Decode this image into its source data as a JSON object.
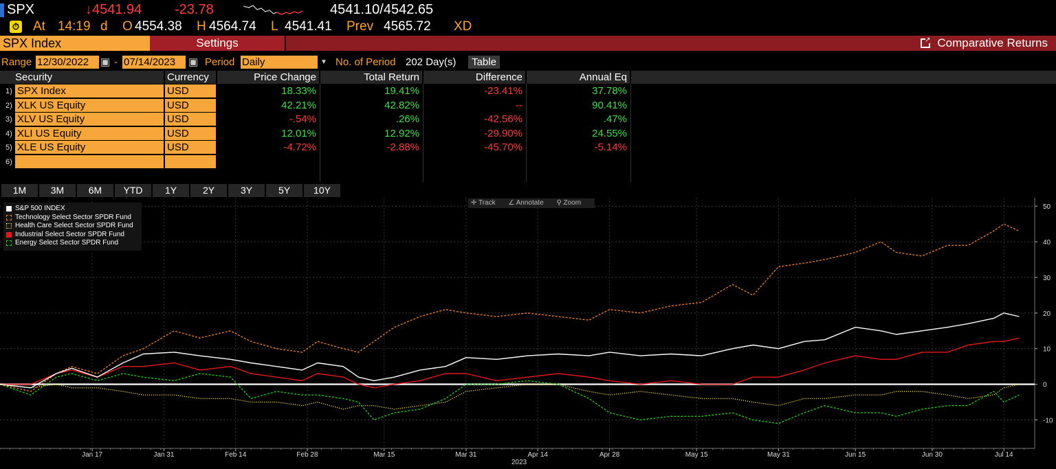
{
  "quote": {
    "ticker": "SPX",
    "last": "↓4541.94",
    "change": "-23.78",
    "bid_ask": "4541.10/4542.65",
    "at_label": "At",
    "time": "14:19",
    "time_flag": "d",
    "open_label": "O",
    "open": "4554.38",
    "high_label": "H",
    "high": "4564.74",
    "low_label": "L",
    "low": "4541.41",
    "prev_label": "Prev",
    "prev": "4565.72",
    "xd": "XD"
  },
  "menubar": {
    "security": "SPX Index",
    "settings": "Settings",
    "title": "Comparative Returns",
    "title_icon": "external-link-icon"
  },
  "controls": {
    "range_label": "Range",
    "start_date": "12/30/2022",
    "dash": "-",
    "end_date": "07/14/2023",
    "period_label": "Period",
    "period_value": "Daily",
    "num_period_label": "No. of Period",
    "num_period_value": "202 Day(s)",
    "table_button": "Table"
  },
  "table": {
    "headers": [
      "Security",
      "Currency",
      "Price Change",
      "Total Return",
      "Difference",
      "Annual Eq"
    ],
    "rows": [
      {
        "num": "1)",
        "security": "SPX Index",
        "currency": "USD",
        "price_change": "18.33%",
        "total_return": "19.41%",
        "difference": "-23.41%",
        "annual_eq": "37.78%"
      },
      {
        "num": "2)",
        "security": "XLK US Equity",
        "currency": "USD",
        "price_change": "42.21%",
        "total_return": "42.82%",
        "difference": "--",
        "annual_eq": "90.41%"
      },
      {
        "num": "3)",
        "security": "XLV US Equity",
        "currency": "USD",
        "price_change": "-.54%",
        "total_return": ".26%",
        "difference": "-42.56%",
        "annual_eq": ".47%"
      },
      {
        "num": "4)",
        "security": "XLI US Equity",
        "currency": "USD",
        "price_change": "12.01%",
        "total_return": "12.92%",
        "difference": "-29.90%",
        "annual_eq": "24.55%"
      },
      {
        "num": "5)",
        "security": "XLE US Equity",
        "currency": "USD",
        "price_change": "-4.72%",
        "total_return": "-2.88%",
        "difference": "-45.70%",
        "annual_eq": "-5.14%"
      },
      {
        "num": "6)",
        "security": "",
        "currency": "",
        "price_change": "",
        "total_return": "",
        "difference": "",
        "annual_eq": ""
      }
    ]
  },
  "range_buttons": [
    "1M",
    "3M",
    "6M",
    "YTD",
    "1Y",
    "2Y",
    "3Y",
    "5Y",
    "10Y"
  ],
  "chart_toolbar": {
    "track": "Track",
    "annotate": "Annotate",
    "zoom": "Zoom"
  },
  "colors": {
    "spx": "#ffffff",
    "xlk": "#e07a2a",
    "xlv": "#e8d23a",
    "xli": "#e8161a",
    "xle": "#22c21a",
    "orange_field": "#f7a639",
    "menubar": "#8c1c21",
    "gain": "#3ee04a",
    "loss": "#ff3b3b"
  },
  "chart_data": {
    "type": "line",
    "x_ticks": [
      "Jan 17",
      "Jan 31",
      "Feb 14",
      "Feb 28",
      "Mar 15",
      "Mar 31",
      "Apr 14",
      "Apr 28",
      "May 15",
      "May 31",
      "Jun 15",
      "Jun 30",
      "Jul 14"
    ],
    "x_year_label": "2023",
    "y_ticks": [
      50,
      40,
      30,
      20,
      10,
      0,
      -10
    ],
    "ylim": [
      -18,
      51
    ],
    "x_range": [
      "2022-12-30",
      "2023-07-18"
    ],
    "grid": true,
    "legend_position": "top-left",
    "series": [
      {
        "name": "S&P 500 INDEX",
        "key": "spx",
        "style": "solid",
        "x": [
          "2022-12-30",
          "2023-01-05",
          "2023-01-10",
          "2023-01-13",
          "2023-01-18",
          "2023-01-23",
          "2023-01-27",
          "2023-02-02",
          "2023-02-07",
          "2023-02-13",
          "2023-02-17",
          "2023-02-22",
          "2023-02-27",
          "2023-03-02",
          "2023-03-07",
          "2023-03-10",
          "2023-03-13",
          "2023-03-17",
          "2023-03-22",
          "2023-03-27",
          "2023-03-31",
          "2023-04-06",
          "2023-04-12",
          "2023-04-18",
          "2023-04-24",
          "2023-04-28",
          "2023-05-04",
          "2023-05-10",
          "2023-05-16",
          "2023-05-22",
          "2023-05-26",
          "2023-05-31",
          "2023-06-05",
          "2023-06-09",
          "2023-06-15",
          "2023-06-20",
          "2023-06-23",
          "2023-06-28",
          "2023-07-03",
          "2023-07-07",
          "2023-07-12",
          "2023-07-14",
          "2023-07-17"
        ],
        "y": [
          0,
          -1,
          3,
          4.5,
          2,
          6,
          8.5,
          9,
          8,
          7,
          6,
          5,
          4,
          6,
          5,
          2,
          1,
          2,
          4,
          5,
          7.5,
          7,
          8,
          8.5,
          8,
          9,
          8,
          8.5,
          8,
          10,
          11,
          10,
          12,
          12.5,
          16,
          15,
          14,
          15,
          16,
          17,
          18.5,
          20,
          19
        ]
      },
      {
        "name": "Technology Select Sector SPDR Fund",
        "key": "xlk",
        "style": "dashed",
        "x": [
          "2022-12-30",
          "2023-01-05",
          "2023-01-10",
          "2023-01-13",
          "2023-01-18",
          "2023-01-23",
          "2023-01-27",
          "2023-02-02",
          "2023-02-07",
          "2023-02-13",
          "2023-02-17",
          "2023-02-22",
          "2023-02-27",
          "2023-03-02",
          "2023-03-07",
          "2023-03-10",
          "2023-03-13",
          "2023-03-17",
          "2023-03-22",
          "2023-03-27",
          "2023-03-31",
          "2023-04-06",
          "2023-04-12",
          "2023-04-18",
          "2023-04-24",
          "2023-04-28",
          "2023-05-04",
          "2023-05-10",
          "2023-05-16",
          "2023-05-22",
          "2023-05-26",
          "2023-05-31",
          "2023-06-05",
          "2023-06-09",
          "2023-06-15",
          "2023-06-20",
          "2023-06-23",
          "2023-06-28",
          "2023-07-03",
          "2023-07-07",
          "2023-07-12",
          "2023-07-14",
          "2023-07-17"
        ],
        "y": [
          0,
          -2,
          3,
          5,
          3,
          8,
          10,
          15,
          13,
          15,
          12,
          10,
          9,
          12,
          10,
          9,
          12,
          16,
          19,
          21,
          20,
          19,
          20,
          19,
          18,
          21,
          20,
          22,
          23,
          28,
          25,
          33,
          34,
          35,
          37,
          40,
          37,
          36,
          39,
          39,
          43,
          45,
          43
        ]
      },
      {
        "name": "Health Care Select Sector SPDR Fund",
        "key": "xlv",
        "style": "dotted",
        "x": [
          "2022-12-30",
          "2023-01-05",
          "2023-01-10",
          "2023-01-13",
          "2023-01-18",
          "2023-01-23",
          "2023-01-27",
          "2023-02-02",
          "2023-02-07",
          "2023-02-13",
          "2023-02-17",
          "2023-02-22",
          "2023-02-27",
          "2023-03-02",
          "2023-03-07",
          "2023-03-10",
          "2023-03-13",
          "2023-03-17",
          "2023-03-22",
          "2023-03-27",
          "2023-03-31",
          "2023-04-06",
          "2023-04-12",
          "2023-04-18",
          "2023-04-24",
          "2023-04-28",
          "2023-05-04",
          "2023-05-10",
          "2023-05-16",
          "2023-05-22",
          "2023-05-26",
          "2023-05-31",
          "2023-06-05",
          "2023-06-09",
          "2023-06-15",
          "2023-06-20",
          "2023-06-23",
          "2023-06-28",
          "2023-07-03",
          "2023-07-07",
          "2023-07-12",
          "2023-07-14",
          "2023-07-17"
        ],
        "y": [
          0,
          -1,
          0,
          -1,
          -1,
          -2,
          -3,
          -3,
          -4,
          -4,
          -5,
          -5,
          -6,
          -5,
          -7,
          -6,
          -6,
          -7,
          -6,
          -5,
          -2,
          -1,
          0,
          0,
          -2,
          -3,
          -2,
          -3,
          -4,
          -4,
          -5,
          -6,
          -4,
          -4,
          -3,
          -3,
          -2,
          -2,
          -3,
          -4,
          -3,
          -1,
          0
        ]
      },
      {
        "name": "Industrial Select Sector SPDR Fund",
        "key": "xli",
        "style": "solid",
        "x": [
          "2022-12-30",
          "2023-01-05",
          "2023-01-10",
          "2023-01-13",
          "2023-01-18",
          "2023-01-23",
          "2023-01-27",
          "2023-02-02",
          "2023-02-07",
          "2023-02-13",
          "2023-02-17",
          "2023-02-22",
          "2023-02-27",
          "2023-03-02",
          "2023-03-07",
          "2023-03-10",
          "2023-03-13",
          "2023-03-17",
          "2023-03-22",
          "2023-03-27",
          "2023-03-31",
          "2023-04-06",
          "2023-04-12",
          "2023-04-18",
          "2023-04-24",
          "2023-04-28",
          "2023-05-04",
          "2023-05-10",
          "2023-05-16",
          "2023-05-22",
          "2023-05-26",
          "2023-05-31",
          "2023-06-05",
          "2023-06-09",
          "2023-06-15",
          "2023-06-20",
          "2023-06-23",
          "2023-06-28",
          "2023-07-03",
          "2023-07-07",
          "2023-07-12",
          "2023-07-14",
          "2023-07-17"
        ],
        "y": [
          0,
          0,
          3,
          4,
          2,
          5,
          5,
          6,
          4,
          5,
          3,
          2,
          1,
          3,
          2,
          0,
          -1,
          0,
          1,
          3,
          3,
          1,
          2,
          3,
          2,
          1,
          0,
          1,
          0,
          0,
          2,
          2,
          4,
          6,
          8,
          7,
          7,
          9,
          9,
          11,
          12,
          12,
          13
        ]
      },
      {
        "name": "Energy Select Sector SPDR Fund",
        "key": "xle",
        "style": "dashed",
        "x": [
          "2022-12-30",
          "2023-01-05",
          "2023-01-10",
          "2023-01-13",
          "2023-01-18",
          "2023-01-23",
          "2023-01-27",
          "2023-02-02",
          "2023-02-07",
          "2023-02-13",
          "2023-02-17",
          "2023-02-22",
          "2023-02-27",
          "2023-03-02",
          "2023-03-07",
          "2023-03-10",
          "2023-03-13",
          "2023-03-17",
          "2023-03-22",
          "2023-03-27",
          "2023-03-31",
          "2023-04-06",
          "2023-04-12",
          "2023-04-18",
          "2023-04-24",
          "2023-04-28",
          "2023-05-04",
          "2023-05-10",
          "2023-05-16",
          "2023-05-22",
          "2023-05-26",
          "2023-05-31",
          "2023-06-05",
          "2023-06-09",
          "2023-06-15",
          "2023-06-20",
          "2023-06-23",
          "2023-06-28",
          "2023-07-03",
          "2023-07-07",
          "2023-07-12",
          "2023-07-14",
          "2023-07-17"
        ],
        "y": [
          0,
          -3,
          2,
          3,
          1,
          3,
          2,
          1,
          3,
          2,
          -4,
          -2,
          -3,
          -3,
          -4,
          -5,
          -10,
          -8,
          -7,
          -4,
          0,
          0,
          1,
          0,
          -4,
          -8,
          -10,
          -9,
          -9,
          -8,
          -10,
          -11,
          -8,
          -6,
          -8,
          -8,
          -9,
          -7,
          -6,
          -6,
          -2,
          -5,
          -3
        ]
      }
    ]
  }
}
